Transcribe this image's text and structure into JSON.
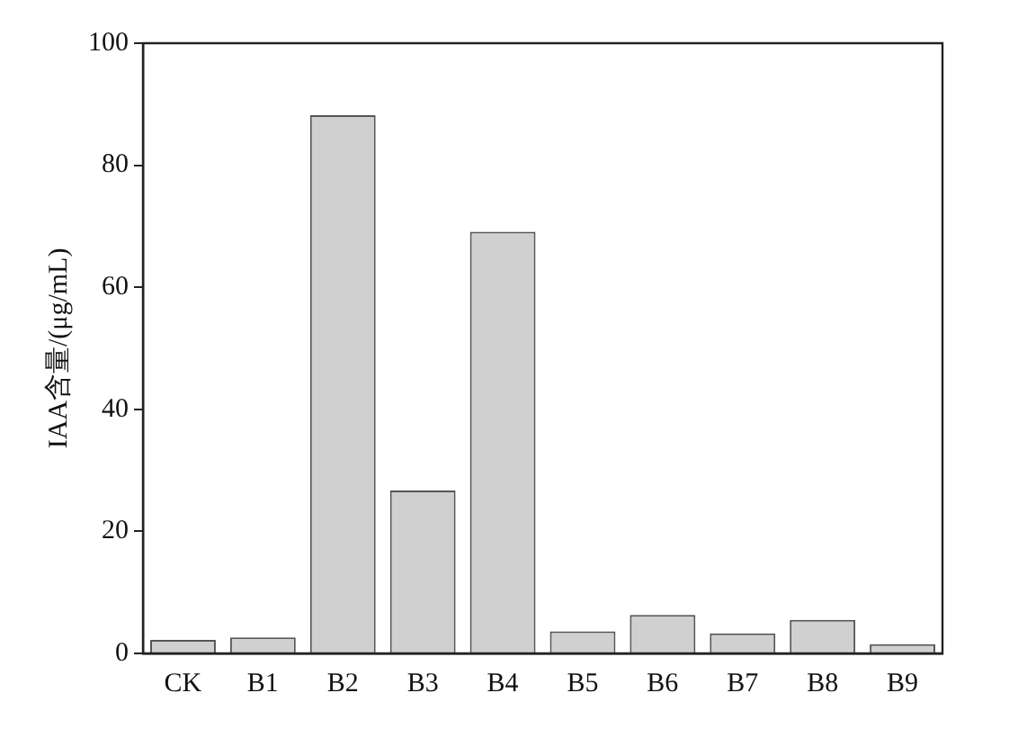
{
  "chart_data": {
    "type": "bar",
    "ylabel": "IAA含量/(μg/mL)",
    "categories": [
      "CK",
      "B1",
      "B2",
      "B3",
      "B4",
      "B5",
      "B6",
      "B7",
      "B8",
      "B9"
    ],
    "values": [
      2.2,
      2.6,
      88.2,
      26.7,
      69.1,
      3.6,
      6.3,
      3.3,
      5.5,
      1.5
    ],
    "color": "#d0d0d0",
    "ylim": [
      0,
      100
    ],
    "yticks": [
      0,
      20,
      40,
      60,
      80,
      100
    ],
    "grid": false,
    "legend": false
  }
}
